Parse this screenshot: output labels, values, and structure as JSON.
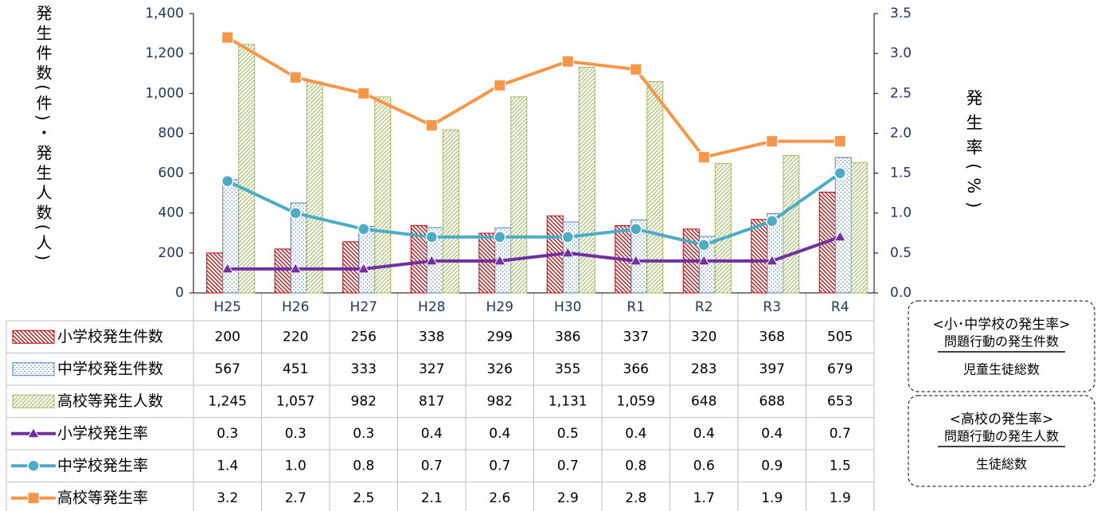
{
  "chart_data": {
    "type": "bar",
    "y_label": "発生件数(件)・発生人数(人)",
    "y2_label": "発生率(%)",
    "categories": [
      "H25",
      "H26",
      "H27",
      "H28",
      "H29",
      "H30",
      "R1",
      "R2",
      "R3",
      "R4"
    ],
    "ylim": [
      0,
      1400
    ],
    "yticks": [
      0,
      200,
      400,
      600,
      800,
      {
        "value": 1000,
        "label": "1,000"
      },
      {
        "value": 1200,
        "label": "1,200"
      },
      {
        "value": 1400,
        "label": "1,400"
      }
    ],
    "y2lim": [
      0,
      3.5
    ],
    "y2ticks": [
      {
        "value": 0,
        "label": "0.0"
      },
      0.5,
      {
        "value": 1,
        "label": "1.0"
      },
      1.5,
      {
        "value": 2,
        "label": "2.0"
      },
      2.5,
      {
        "value": 3,
        "label": "3.0"
      },
      3.5
    ],
    "series": [
      {
        "name": "小学校発生件数",
        "type": "bar",
        "color": "#c00000",
        "values": [
          200,
          220,
          256,
          338,
          299,
          386,
          337,
          320,
          368,
          505
        ],
        "value_labels": [
          "200",
          "220",
          "256",
          "338",
          "299",
          "386",
          "337",
          "320",
          "368",
          "505"
        ]
      },
      {
        "name": "中学校発生件数",
        "type": "bar",
        "color": "#4f81bd",
        "values": [
          567,
          451,
          333,
          327,
          326,
          355,
          366,
          283,
          397,
          679
        ],
        "value_labels": [
          "567",
          "451",
          "333",
          "327",
          "326",
          "355",
          "366",
          "283",
          "397",
          "679"
        ]
      },
      {
        "name": "高校等発生人数",
        "type": "bar",
        "color": "#9bbb59",
        "values": [
          1245,
          1057,
          982,
          817,
          982,
          1131,
          1059,
          648,
          688,
          653
        ],
        "value_labels": [
          "1,245",
          "1,057",
          "982",
          "817",
          "982",
          "1,131",
          "1,059",
          "648",
          "688",
          "653"
        ]
      },
      {
        "name": "小学校発生率",
        "type": "line",
        "axis": "y2",
        "marker": "triangle",
        "color": "#7030a0",
        "values": [
          0.3,
          0.3,
          0.3,
          0.4,
          0.4,
          0.5,
          0.4,
          0.4,
          0.4,
          0.7
        ],
        "value_labels": [
          "0.3",
          "0.3",
          "0.3",
          "0.4",
          "0.4",
          "0.5",
          "0.4",
          "0.4",
          "0.4",
          "0.7"
        ]
      },
      {
        "name": "中学校発生率",
        "type": "line",
        "axis": "y2",
        "marker": "circle",
        "color": "#4bacc6",
        "values": [
          1.4,
          1,
          0.8,
          0.7,
          0.7,
          0.7,
          0.8,
          0.6,
          0.9,
          1.5
        ],
        "value_labels": [
          "1.4",
          "1.0",
          "0.8",
          "0.7",
          "0.7",
          "0.7",
          "0.8",
          "0.6",
          "0.9",
          "1.5"
        ]
      },
      {
        "name": "高校等発生率",
        "type": "line",
        "axis": "y2",
        "marker": "square",
        "color": "#f79646",
        "values": [
          3.2,
          2.7,
          2.5,
          2.1,
          2.6,
          2.9,
          2.8,
          1.7,
          1.9,
          1.9
        ],
        "value_labels": [
          "3.2",
          "2.7",
          "2.5",
          "2.1",
          "2.6",
          "2.9",
          "2.8",
          "1.7",
          "1.9",
          "1.9"
        ]
      }
    ],
    "annotations": [
      {
        "title": "<小･中学校の発生率>",
        "numerator": "問題行動の発生件数",
        "denominator": "児童生徒総数"
      },
      {
        "title": "<高校の発生率>",
        "numerator": "問題行動の発生人数",
        "denominator": "生徒総数"
      }
    ]
  }
}
